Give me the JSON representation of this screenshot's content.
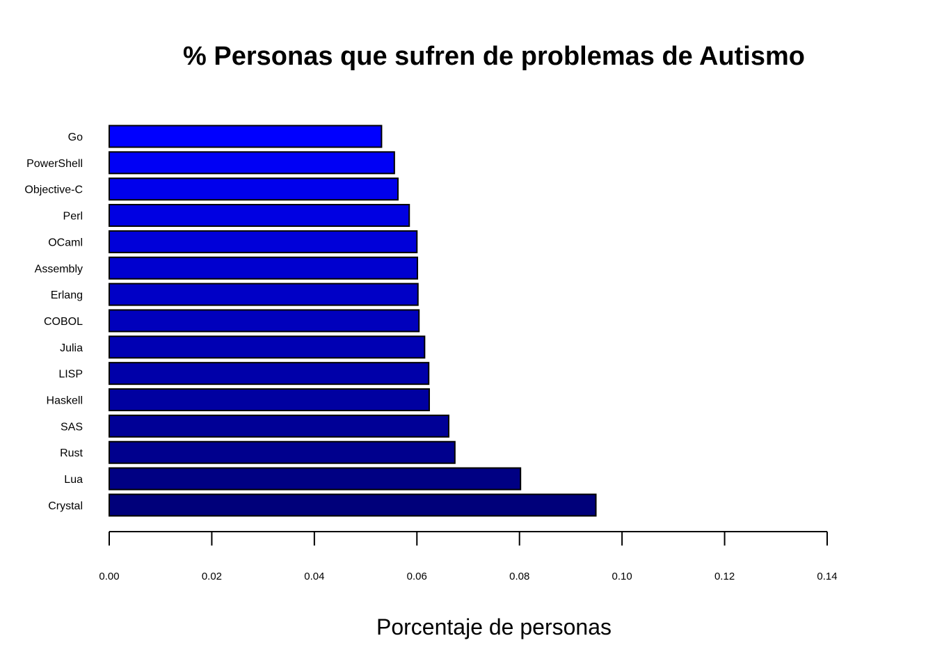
{
  "chart_data": {
    "type": "bar",
    "orientation": "horizontal",
    "title": "% Personas que sufren de problemas de Autismo",
    "xlabel": "Porcentaje de personas",
    "ylabel": "",
    "xlim": [
      0,
      0.14
    ],
    "xticks": [
      "0.00",
      "0.02",
      "0.04",
      "0.06",
      "0.08",
      "0.10",
      "0.12",
      "0.14"
    ],
    "grid": false,
    "legend": "none",
    "categories": [
      "Go",
      "PowerShell",
      "Objective-C",
      "Perl",
      "OCaml",
      "Assembly",
      "Erlang",
      "COBOL",
      "Julia",
      "LISP",
      "Haskell",
      "SAS",
      "Rust",
      "Lua",
      "Crystal"
    ],
    "values": [
      0.0531,
      0.0556,
      0.0563,
      0.0585,
      0.06,
      0.0601,
      0.0602,
      0.0604,
      0.0615,
      0.0623,
      0.0624,
      0.0662,
      0.0674,
      0.0802,
      0.0949
    ],
    "colors": [
      "#0000ff",
      "#0000f5",
      "#0000ec",
      "#0000e2",
      "#0000d9",
      "#0000cf",
      "#0000c6",
      "#0000bc",
      "#0000b3",
      "#0000a9",
      "#0000a0",
      "#000096",
      "#00008d",
      "#000083",
      "#00007a"
    ]
  }
}
